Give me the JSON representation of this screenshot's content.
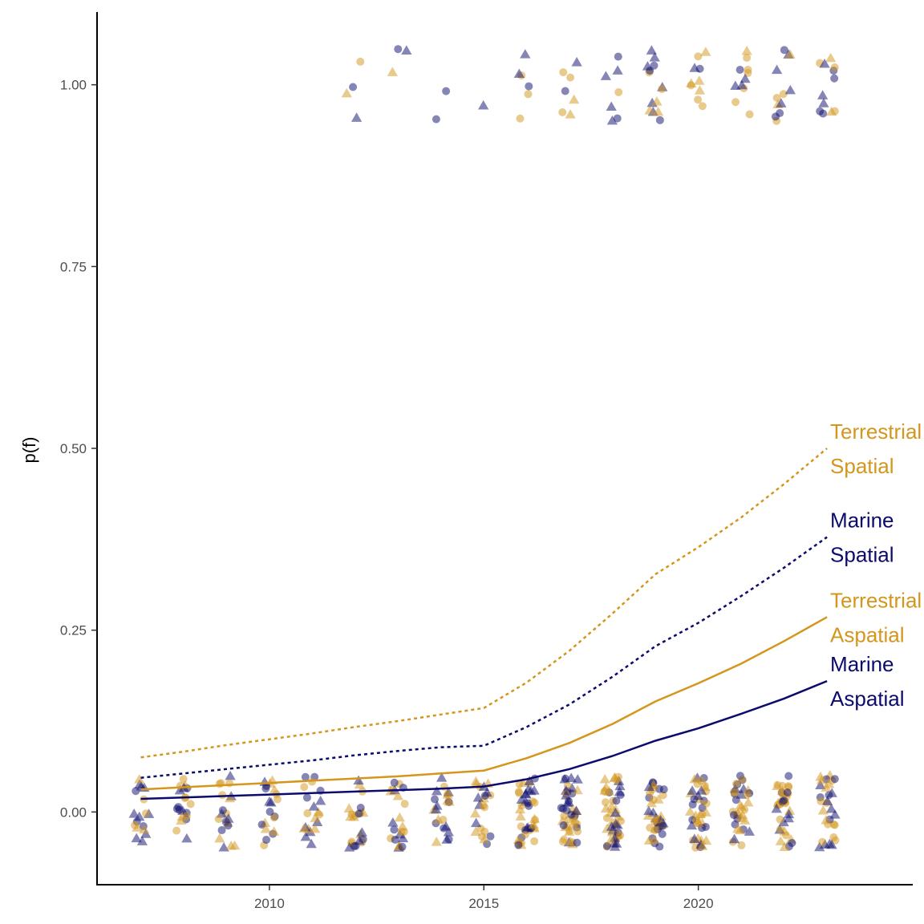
{
  "chart_data": {
    "type": "scatter",
    "title": "",
    "xlabel": "",
    "ylabel": "p(f)",
    "xlim": [
      2006.0,
      2025.0
    ],
    "ylim": [
      -0.1,
      1.1
    ],
    "grid": false,
    "legend": "none",
    "x_ticks": [
      {
        "value": 2010,
        "label": "2010"
      },
      {
        "value": 2015,
        "label": "2015"
      },
      {
        "value": 2020,
        "label": "2020"
      }
    ],
    "y_ticks": [
      {
        "value": 0.0,
        "label": "0.00"
      },
      {
        "value": 0.25,
        "label": "0.25"
      },
      {
        "value": 0.5,
        "label": "0.50"
      },
      {
        "value": 0.75,
        "label": "0.75"
      },
      {
        "value": 1.0,
        "label": "1.00"
      }
    ],
    "colors": {
      "terrestrial": "#D4961C",
      "marine": "#0B0B6E"
    },
    "x": [
      2007,
      2008,
      2009,
      2010,
      2011,
      2012,
      2013,
      2014,
      2015,
      2016,
      2017,
      2018,
      2019,
      2020,
      2021,
      2022,
      2023
    ],
    "series": [
      {
        "group": "terrestrial",
        "dash": true,
        "values": [
          0.075,
          0.083,
          0.092,
          0.1,
          0.108,
          0.117,
          0.125,
          0.134,
          0.143,
          0.178,
          0.222,
          0.273,
          0.327,
          0.364,
          0.405,
          0.451,
          0.5
        ]
      },
      {
        "group": "marine",
        "dash": true,
        "values": [
          0.047,
          0.053,
          0.059,
          0.065,
          0.071,
          0.078,
          0.084,
          0.089,
          0.091,
          0.117,
          0.148,
          0.186,
          0.228,
          0.26,
          0.297,
          0.336,
          0.378
        ]
      },
      {
        "group": "terrestrial",
        "dash": false,
        "values": [
          0.031,
          0.034,
          0.037,
          0.04,
          0.043,
          0.046,
          0.049,
          0.053,
          0.057,
          0.074,
          0.095,
          0.121,
          0.152,
          0.177,
          0.204,
          0.235,
          0.268
        ]
      },
      {
        "group": "marine",
        "dash": false,
        "values": [
          0.018,
          0.02,
          0.022,
          0.024,
          0.026,
          0.028,
          0.03,
          0.032,
          0.035,
          0.045,
          0.059,
          0.077,
          0.098,
          0.115,
          0.135,
          0.156,
          0.18
        ]
      }
    ],
    "line_labels": [
      {
        "group": "terrestrial",
        "line1": "Terrestrial",
        "line2": "Spatial",
        "x": 2023,
        "y": 0.5
      },
      {
        "group": "marine",
        "line1": "Marine",
        "line2": "Spatial",
        "x": 2023,
        "y": 0.378
      },
      {
        "group": "terrestrial",
        "line1": "Terrestrial",
        "line2": "Aspatial",
        "x": 2023,
        "y": 0.268
      },
      {
        "group": "marine",
        "line1": "Marine",
        "line2": "Aspatial",
        "x": 2023,
        "y": 0.18
      }
    ],
    "points_one_per_year": [
      0,
      0,
      0,
      0,
      0,
      4,
      3,
      2,
      1,
      6,
      7,
      7,
      14,
      10,
      11,
      12,
      12
    ],
    "points_zero_per_year": [
      18,
      20,
      20,
      20,
      20,
      22,
      22,
      22,
      22,
      40,
      45,
      45,
      40,
      40,
      35,
      35,
      30
    ],
    "points_note": "Each study is a jittered point at p=0 or p=1; circles and triangles in both colours."
  }
}
